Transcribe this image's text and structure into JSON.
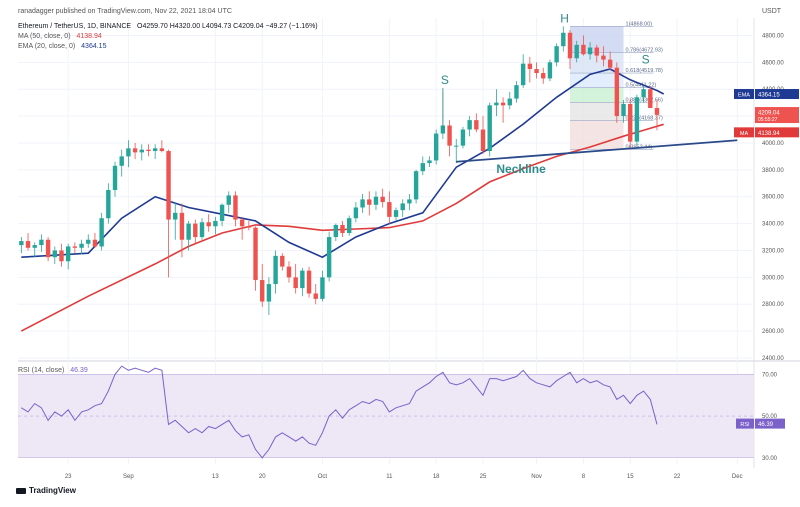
{
  "header": {
    "publisher": "ranadagger published on TradingView.com, Nov 22, 2021 18:04 UTC",
    "symbol": "Ethereum / TetherUS, 1D, BINANCE",
    "ohlc": "O4259.70  H4320.00  L4094.73  C4209.04  −49.27 (−1.16%)",
    "ma_label": "MA (50, close, 0)",
    "ma_value": "4138.94",
    "ema_label": "EMA (20, close, 0)",
    "ema_value": "4364.15",
    "currency": "USDT"
  },
  "footer": {
    "brand": "TradingView"
  },
  "annotations": {
    "left_shoulder": "S",
    "head": "H",
    "right_shoulder": "S",
    "neckline": "Neckline"
  },
  "fib_labels": [
    {
      "level": 1,
      "text": "1(4868.00)"
    },
    {
      "level": 0.786,
      "text": "0.786(4672.93)"
    },
    {
      "level": 0.618,
      "text": "0.618(4519.78)"
    },
    {
      "level": 0.5,
      "text": "0.5(4411.22)"
    },
    {
      "level": 0.382,
      "text": "0.382(4302.66)"
    },
    {
      "level": 0.236,
      "text": "0.236(4168.37)"
    },
    {
      "level": 0,
      "text": "0(3952.44)"
    }
  ],
  "price_tags": {
    "ema": {
      "label": "EMA",
      "value": "4364.15"
    },
    "close": {
      "value": "4209.04",
      "sub": "05:55:27"
    },
    "ma": {
      "label": "MA",
      "value": "4138.94"
    }
  },
  "rsi": {
    "label": "RSI (14, close)",
    "value": "46.39",
    "tag_label": "RSI",
    "tag_value": "46.39"
  },
  "colors": {
    "up": "#26a69a",
    "down": "#ef5350",
    "ema": "#1f3a93",
    "ma": "#e03a3a",
    "neckline": "#2a4a8a",
    "rsi_line": "#7b61c9",
    "rsi_band": "#ede7f6",
    "annotation": "#2e8b8b"
  },
  "chart_data": [
    {
      "type": "candlestick",
      "title": "Ethereum / TetherUS, 1D, BINANCE",
      "ylim": [
        2400,
        4900
      ],
      "y_ticks": [
        "4800.00",
        "4600.00",
        "4400.00",
        "4200.00",
        "4000.00",
        "3800.00",
        "3600.00",
        "3400.00",
        "3200.00",
        "3000.00",
        "2800.00",
        "2600.00",
        "2400.00"
      ],
      "x_ticks": [
        "23",
        "Sep",
        "13",
        "20",
        "Oct",
        "11",
        "18",
        "25",
        "Nov",
        "8",
        "15",
        "22",
        "Dec"
      ],
      "x_tick_days": [
        7,
        16,
        29,
        36,
        45,
        55,
        62,
        69,
        77,
        84,
        91,
        98,
        107
      ],
      "candles": [
        {
          "o": 3240,
          "h": 3300,
          "l": 3180,
          "c": 3270
        },
        {
          "o": 3270,
          "h": 3330,
          "l": 3200,
          "c": 3220
        },
        {
          "o": 3220,
          "h": 3260,
          "l": 3150,
          "c": 3240
        },
        {
          "o": 3240,
          "h": 3320,
          "l": 3190,
          "c": 3280
        },
        {
          "o": 3280,
          "h": 3300,
          "l": 3120,
          "c": 3150
        },
        {
          "o": 3150,
          "h": 3230,
          "l": 3100,
          "c": 3200
        },
        {
          "o": 3200,
          "h": 3250,
          "l": 3080,
          "c": 3120
        },
        {
          "o": 3120,
          "h": 3250,
          "l": 3060,
          "c": 3230
        },
        {
          "o": 3230,
          "h": 3260,
          "l": 3180,
          "c": 3220
        },
        {
          "o": 3220,
          "h": 3280,
          "l": 3170,
          "c": 3250
        },
        {
          "o": 3250,
          "h": 3320,
          "l": 3220,
          "c": 3280
        },
        {
          "o": 3280,
          "h": 3330,
          "l": 3220,
          "c": 3230
        },
        {
          "o": 3230,
          "h": 3480,
          "l": 3200,
          "c": 3440
        },
        {
          "o": 3440,
          "h": 3700,
          "l": 3400,
          "c": 3650
        },
        {
          "o": 3650,
          "h": 3860,
          "l": 3600,
          "c": 3830
        },
        {
          "o": 3830,
          "h": 3950,
          "l": 3750,
          "c": 3900
        },
        {
          "o": 3900,
          "h": 4020,
          "l": 3820,
          "c": 3960
        },
        {
          "o": 3960,
          "h": 4000,
          "l": 3880,
          "c": 3930
        },
        {
          "o": 3930,
          "h": 3990,
          "l": 3870,
          "c": 3950
        },
        {
          "o": 3950,
          "h": 3990,
          "l": 3900,
          "c": 3940
        },
        {
          "o": 3940,
          "h": 3990,
          "l": 3880,
          "c": 3960
        },
        {
          "o": 3960,
          "h": 4020,
          "l": 3930,
          "c": 3940
        },
        {
          "o": 3940,
          "h": 3950,
          "l": 3000,
          "c": 3430
        },
        {
          "o": 3430,
          "h": 3560,
          "l": 3280,
          "c": 3480
        },
        {
          "o": 3480,
          "h": 3550,
          "l": 3150,
          "c": 3280
        },
        {
          "o": 3280,
          "h": 3420,
          "l": 3200,
          "c": 3400
        },
        {
          "o": 3400,
          "h": 3430,
          "l": 3250,
          "c": 3300
        },
        {
          "o": 3300,
          "h": 3440,
          "l": 3280,
          "c": 3410
        },
        {
          "o": 3410,
          "h": 3470,
          "l": 3340,
          "c": 3380
        },
        {
          "o": 3380,
          "h": 3450,
          "l": 3320,
          "c": 3420
        },
        {
          "o": 3420,
          "h": 3550,
          "l": 3380,
          "c": 3540
        },
        {
          "o": 3540,
          "h": 3640,
          "l": 3480,
          "c": 3610
        },
        {
          "o": 3610,
          "h": 3640,
          "l": 3380,
          "c": 3430
        },
        {
          "o": 3430,
          "h": 3450,
          "l": 3280,
          "c": 3380
        },
        {
          "o": 3380,
          "h": 3420,
          "l": 3350,
          "c": 3370
        },
        {
          "o": 3370,
          "h": 3380,
          "l": 2900,
          "c": 2980
        },
        {
          "o": 2980,
          "h": 3100,
          "l": 2780,
          "c": 2820
        },
        {
          "o": 2820,
          "h": 3000,
          "l": 2720,
          "c": 2950
        },
        {
          "o": 2950,
          "h": 3200,
          "l": 2880,
          "c": 3160
        },
        {
          "o": 3160,
          "h": 3180,
          "l": 3050,
          "c": 3080
        },
        {
          "o": 3080,
          "h": 3120,
          "l": 2960,
          "c": 3000
        },
        {
          "o": 3000,
          "h": 3100,
          "l": 2880,
          "c": 2920
        },
        {
          "o": 2920,
          "h": 3070,
          "l": 2860,
          "c": 3050
        },
        {
          "o": 3050,
          "h": 3080,
          "l": 2850,
          "c": 2880
        },
        {
          "o": 2880,
          "h": 2950,
          "l": 2800,
          "c": 2840
        },
        {
          "o": 2840,
          "h": 3050,
          "l": 2820,
          "c": 3000
        },
        {
          "o": 3000,
          "h": 3340,
          "l": 2970,
          "c": 3300
        },
        {
          "o": 3300,
          "h": 3400,
          "l": 3270,
          "c": 3390
        },
        {
          "o": 3390,
          "h": 3420,
          "l": 3300,
          "c": 3330
        },
        {
          "o": 3330,
          "h": 3460,
          "l": 3310,
          "c": 3440
        },
        {
          "o": 3440,
          "h": 3560,
          "l": 3410,
          "c": 3520
        },
        {
          "o": 3520,
          "h": 3620,
          "l": 3480,
          "c": 3580
        },
        {
          "o": 3580,
          "h": 3640,
          "l": 3460,
          "c": 3540
        },
        {
          "o": 3540,
          "h": 3640,
          "l": 3500,
          "c": 3600
        },
        {
          "o": 3600,
          "h": 3660,
          "l": 3520,
          "c": 3560
        },
        {
          "o": 3560,
          "h": 3640,
          "l": 3400,
          "c": 3450
        },
        {
          "o": 3450,
          "h": 3520,
          "l": 3420,
          "c": 3500
        },
        {
          "o": 3500,
          "h": 3580,
          "l": 3450,
          "c": 3550
        },
        {
          "o": 3550,
          "h": 3620,
          "l": 3500,
          "c": 3580
        },
        {
          "o": 3580,
          "h": 3800,
          "l": 3550,
          "c": 3790
        },
        {
          "o": 3790,
          "h": 3900,
          "l": 3760,
          "c": 3850
        },
        {
          "o": 3850,
          "h": 3900,
          "l": 3820,
          "c": 3870
        },
        {
          "o": 3870,
          "h": 4100,
          "l": 3840,
          "c": 4070
        },
        {
          "o": 4070,
          "h": 4380,
          "l": 4030,
          "c": 4130
        },
        {
          "o": 4130,
          "h": 4170,
          "l": 3900,
          "c": 3980
        },
        {
          "o": 3980,
          "h": 4030,
          "l": 3850,
          "c": 3980
        },
        {
          "o": 3980,
          "h": 4120,
          "l": 3960,
          "c": 4100
        },
        {
          "o": 4100,
          "h": 4200,
          "l": 4050,
          "c": 4170
        },
        {
          "o": 4170,
          "h": 4220,
          "l": 4080,
          "c": 4100
        },
        {
          "o": 4100,
          "h": 4200,
          "l": 3920,
          "c": 3940
        },
        {
          "o": 3940,
          "h": 4300,
          "l": 3900,
          "c": 4280
        },
        {
          "o": 4280,
          "h": 4400,
          "l": 4200,
          "c": 4300
        },
        {
          "o": 4300,
          "h": 4340,
          "l": 4150,
          "c": 4280
        },
        {
          "o": 4280,
          "h": 4380,
          "l": 4250,
          "c": 4330
        },
        {
          "o": 4330,
          "h": 4460,
          "l": 4300,
          "c": 4430
        },
        {
          "o": 4430,
          "h": 4660,
          "l": 4410,
          "c": 4590
        },
        {
          "o": 4590,
          "h": 4640,
          "l": 4450,
          "c": 4550
        },
        {
          "o": 4550,
          "h": 4600,
          "l": 4480,
          "c": 4520
        },
        {
          "o": 4520,
          "h": 4560,
          "l": 4440,
          "c": 4480
        },
        {
          "o": 4480,
          "h": 4620,
          "l": 4460,
          "c": 4600
        },
        {
          "o": 4600,
          "h": 4740,
          "l": 4570,
          "c": 4720
        },
        {
          "o": 4720,
          "h": 4868,
          "l": 4680,
          "c": 4820
        },
        {
          "o": 4820,
          "h": 4840,
          "l": 4550,
          "c": 4630
        },
        {
          "o": 4630,
          "h": 4760,
          "l": 4600,
          "c": 4730
        },
        {
          "o": 4730,
          "h": 4800,
          "l": 4650,
          "c": 4660
        },
        {
          "o": 4660,
          "h": 4750,
          "l": 4620,
          "c": 4710
        },
        {
          "o": 4710,
          "h": 4730,
          "l": 4600,
          "c": 4650
        },
        {
          "o": 4650,
          "h": 4720,
          "l": 4570,
          "c": 4620
        },
        {
          "o": 4620,
          "h": 4680,
          "l": 4540,
          "c": 4560
        },
        {
          "o": 4560,
          "h": 4600,
          "l": 4150,
          "c": 4200
        },
        {
          "o": 4200,
          "h": 4320,
          "l": 4150,
          "c": 4290
        },
        {
          "o": 4290,
          "h": 4330,
          "l": 3960,
          "c": 4010
        },
        {
          "o": 4010,
          "h": 4360,
          "l": 3980,
          "c": 4340
        },
        {
          "o": 4340,
          "h": 4420,
          "l": 4300,
          "c": 4400
        },
        {
          "o": 4400,
          "h": 4420,
          "l": 4260,
          "c": 4260
        },
        {
          "o": 4259.7,
          "h": 4320,
          "l": 4094.73,
          "c": 4209.04
        }
      ],
      "ema20": [
        [
          0,
          3150
        ],
        [
          10,
          3180
        ],
        [
          15,
          3440
        ],
        [
          20,
          3600
        ],
        [
          25,
          3520
        ],
        [
          30,
          3470
        ],
        [
          35,
          3420
        ],
        [
          40,
          3260
        ],
        [
          45,
          3150
        ],
        [
          50,
          3300
        ],
        [
          55,
          3400
        ],
        [
          60,
          3480
        ],
        [
          65,
          3820
        ],
        [
          70,
          3960
        ],
        [
          75,
          4140
        ],
        [
          80,
          4340
        ],
        [
          85,
          4510
        ],
        [
          88,
          4550
        ],
        [
          91,
          4470
        ],
        [
          95,
          4390
        ],
        [
          96,
          4364
        ]
      ],
      "ma50": [
        [
          0,
          2600
        ],
        [
          10,
          2860
        ],
        [
          20,
          3100
        ],
        [
          25,
          3230
        ],
        [
          30,
          3330
        ],
        [
          35,
          3390
        ],
        [
          40,
          3380
        ],
        [
          45,
          3350
        ],
        [
          50,
          3360
        ],
        [
          55,
          3370
        ],
        [
          60,
          3420
        ],
        [
          65,
          3550
        ],
        [
          70,
          3710
        ],
        [
          75,
          3810
        ],
        [
          80,
          3900
        ],
        [
          85,
          3970
        ],
        [
          90,
          4050
        ],
        [
          96,
          4139
        ]
      ],
      "neckline": {
        "x1": 65,
        "y1": 3860,
        "x2": 107,
        "y2": 4020
      },
      "fib_box": {
        "x1": 82,
        "x2": 90,
        "levels": [
          4868,
          4672.93,
          4519.78,
          4411.22,
          4302.66,
          4168.37,
          3952.44
        ]
      }
    },
    {
      "type": "line",
      "title": "RSI (14, close)",
      "ylim": [
        27,
        75
      ],
      "y_ticks": [
        "70.00",
        "50.00",
        "30.00"
      ],
      "band": [
        30,
        70
      ],
      "series": [
        {
          "values": [
            54,
            52,
            56,
            54,
            48,
            52,
            50,
            53,
            48,
            52,
            53,
            55,
            56,
            62,
            70,
            74,
            72,
            73,
            72,
            71,
            73,
            72,
            46,
            48,
            45,
            42,
            44,
            42,
            45,
            44,
            46,
            48,
            43,
            40,
            41,
            34,
            30,
            34,
            40,
            42,
            40,
            38,
            40,
            37,
            36,
            42,
            50,
            53,
            49,
            53,
            55,
            57,
            56,
            58,
            57,
            52,
            54,
            55,
            56,
            62,
            64,
            66,
            69,
            71,
            66,
            65,
            66,
            68,
            64,
            60,
            68,
            68,
            67,
            68,
            69,
            72,
            68,
            66,
            65,
            64,
            67,
            69,
            71,
            66,
            68,
            66,
            67,
            65,
            64,
            58,
            60,
            56,
            60,
            62,
            58,
            46
          ]
        }
      ]
    }
  ]
}
